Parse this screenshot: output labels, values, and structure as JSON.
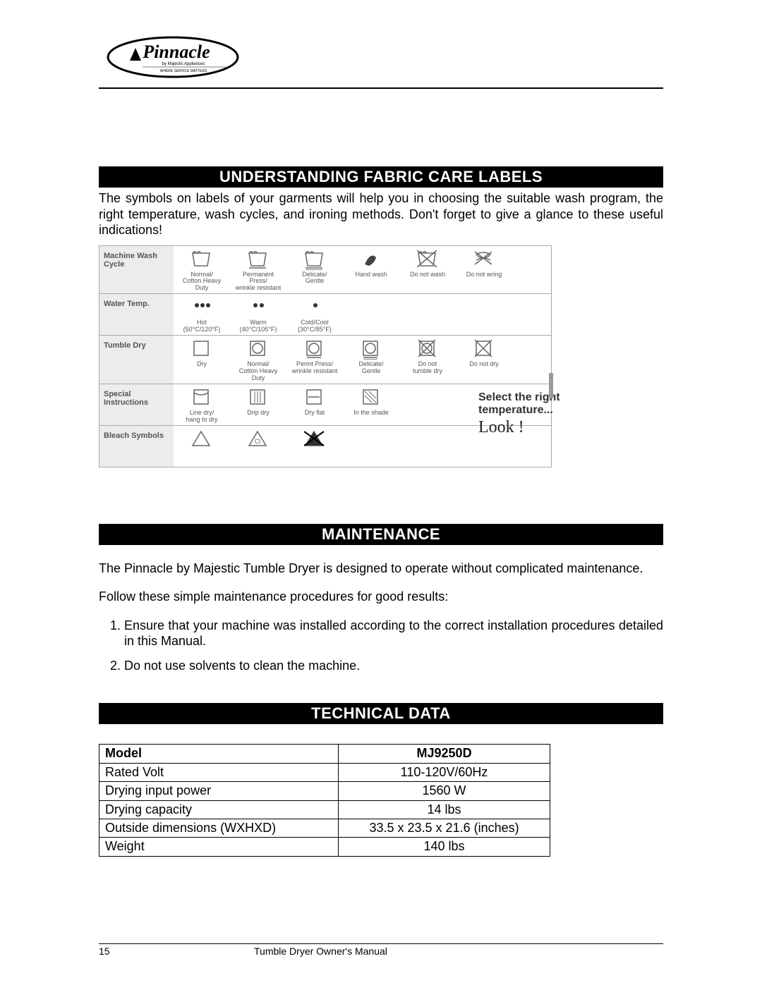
{
  "logo": {
    "brand": "Pinnacle",
    "subtitle1": "by Majestic Appliances",
    "subtitle2": "WHERE SERVICE MATTERS"
  },
  "section1": {
    "heading": "UNDERSTANDING FABRIC CARE LABELS",
    "intro": "The symbols on labels of your garments will help you in choosing the suitable wash program, the right temperature, wash cycles, and ironing methods. Don't forget to give a glance to these useful indications!"
  },
  "care_table": {
    "rows": [
      {
        "label": "Machine Wash Cycle",
        "items": [
          {
            "caption": "Normal/\nCotton Heavy Duty",
            "icon": "wash"
          },
          {
            "caption": "Permanent Press/\nwrinkle resistant",
            "icon": "wash-bar"
          },
          {
            "caption": "Delicate/\nGentle",
            "icon": "wash-2bar"
          },
          {
            "caption": "Hand wash",
            "icon": "hand"
          },
          {
            "caption": "Do not wash",
            "icon": "wash-x"
          },
          {
            "caption": "Do not wring",
            "icon": "wring-x"
          }
        ]
      },
      {
        "label": "Water Temp.",
        "items": [
          {
            "caption": "Hot\n(50°C/120°F)",
            "icon": "dots3"
          },
          {
            "caption": "Warm\n(40°C/105°F)",
            "icon": "dots2"
          },
          {
            "caption": "Cold/Cool\n(30°C/85°F)",
            "icon": "dot1"
          }
        ]
      },
      {
        "label": "Tumble Dry",
        "items": [
          {
            "caption": "Dry",
            "icon": "sq"
          },
          {
            "caption": "Normal/\nCotton Heavy Duty",
            "icon": "sqcirc"
          },
          {
            "caption": "Permt Press/\nwrinkle resistant",
            "icon": "sqcirc-bar"
          },
          {
            "caption": "Delicate/\nGentle",
            "icon": "sqcirc-2bar"
          },
          {
            "caption": "Do not\ntumble dry",
            "icon": "sqcirc-x"
          },
          {
            "caption": "Do not dry",
            "icon": "sq-x"
          }
        ]
      },
      {
        "label": "Special Instructions",
        "items": [
          {
            "caption": "Line dry/\nhang to dry",
            "icon": "line-dry"
          },
          {
            "caption": "Drip dry",
            "icon": "drip"
          },
          {
            "caption": "Dry flat",
            "icon": "flat"
          },
          {
            "caption": "In the shade",
            "icon": "shade"
          }
        ]
      },
      {
        "label": "Bleach Symbols",
        "items": [
          {
            "caption": "",
            "icon": "tri"
          },
          {
            "caption": "",
            "icon": "tri-cl"
          },
          {
            "caption": "",
            "icon": "tri-x"
          }
        ]
      }
    ]
  },
  "sidebox": {
    "line1": "Select the right",
    "line2": "temperature...",
    "look": "Look !"
  },
  "section2": {
    "heading": "MAINTENANCE",
    "p1": "The Pinnacle by Majestic Tumble Dryer is designed to operate without complicated maintenance.",
    "p2": "Follow these simple maintenance procedures for good results:",
    "li1": "Ensure that your machine was installed according to the correct installation procedures detailed in this Manual.",
    "li2": "Do not use solvents to clean the machine."
  },
  "section3": {
    "heading": "TECHNICAL DATA",
    "rows": [
      {
        "k": "Model",
        "v": "MJ9250D",
        "head": true
      },
      {
        "k": "Rated Volt",
        "v": "110-120V/60Hz"
      },
      {
        "k": "Drying input power",
        "v": "1560 W"
      },
      {
        "k": "Drying capacity",
        "v": "14 lbs"
      },
      {
        "k": "Outside dimensions (WXHXD)",
        "v": "33.5 x 23.5 x 21.6 (inches)"
      },
      {
        "k": "Weight",
        "v": "140 lbs"
      }
    ]
  },
  "footer": {
    "page": "15",
    "title": "Tumble Dryer Owner's Manual"
  }
}
